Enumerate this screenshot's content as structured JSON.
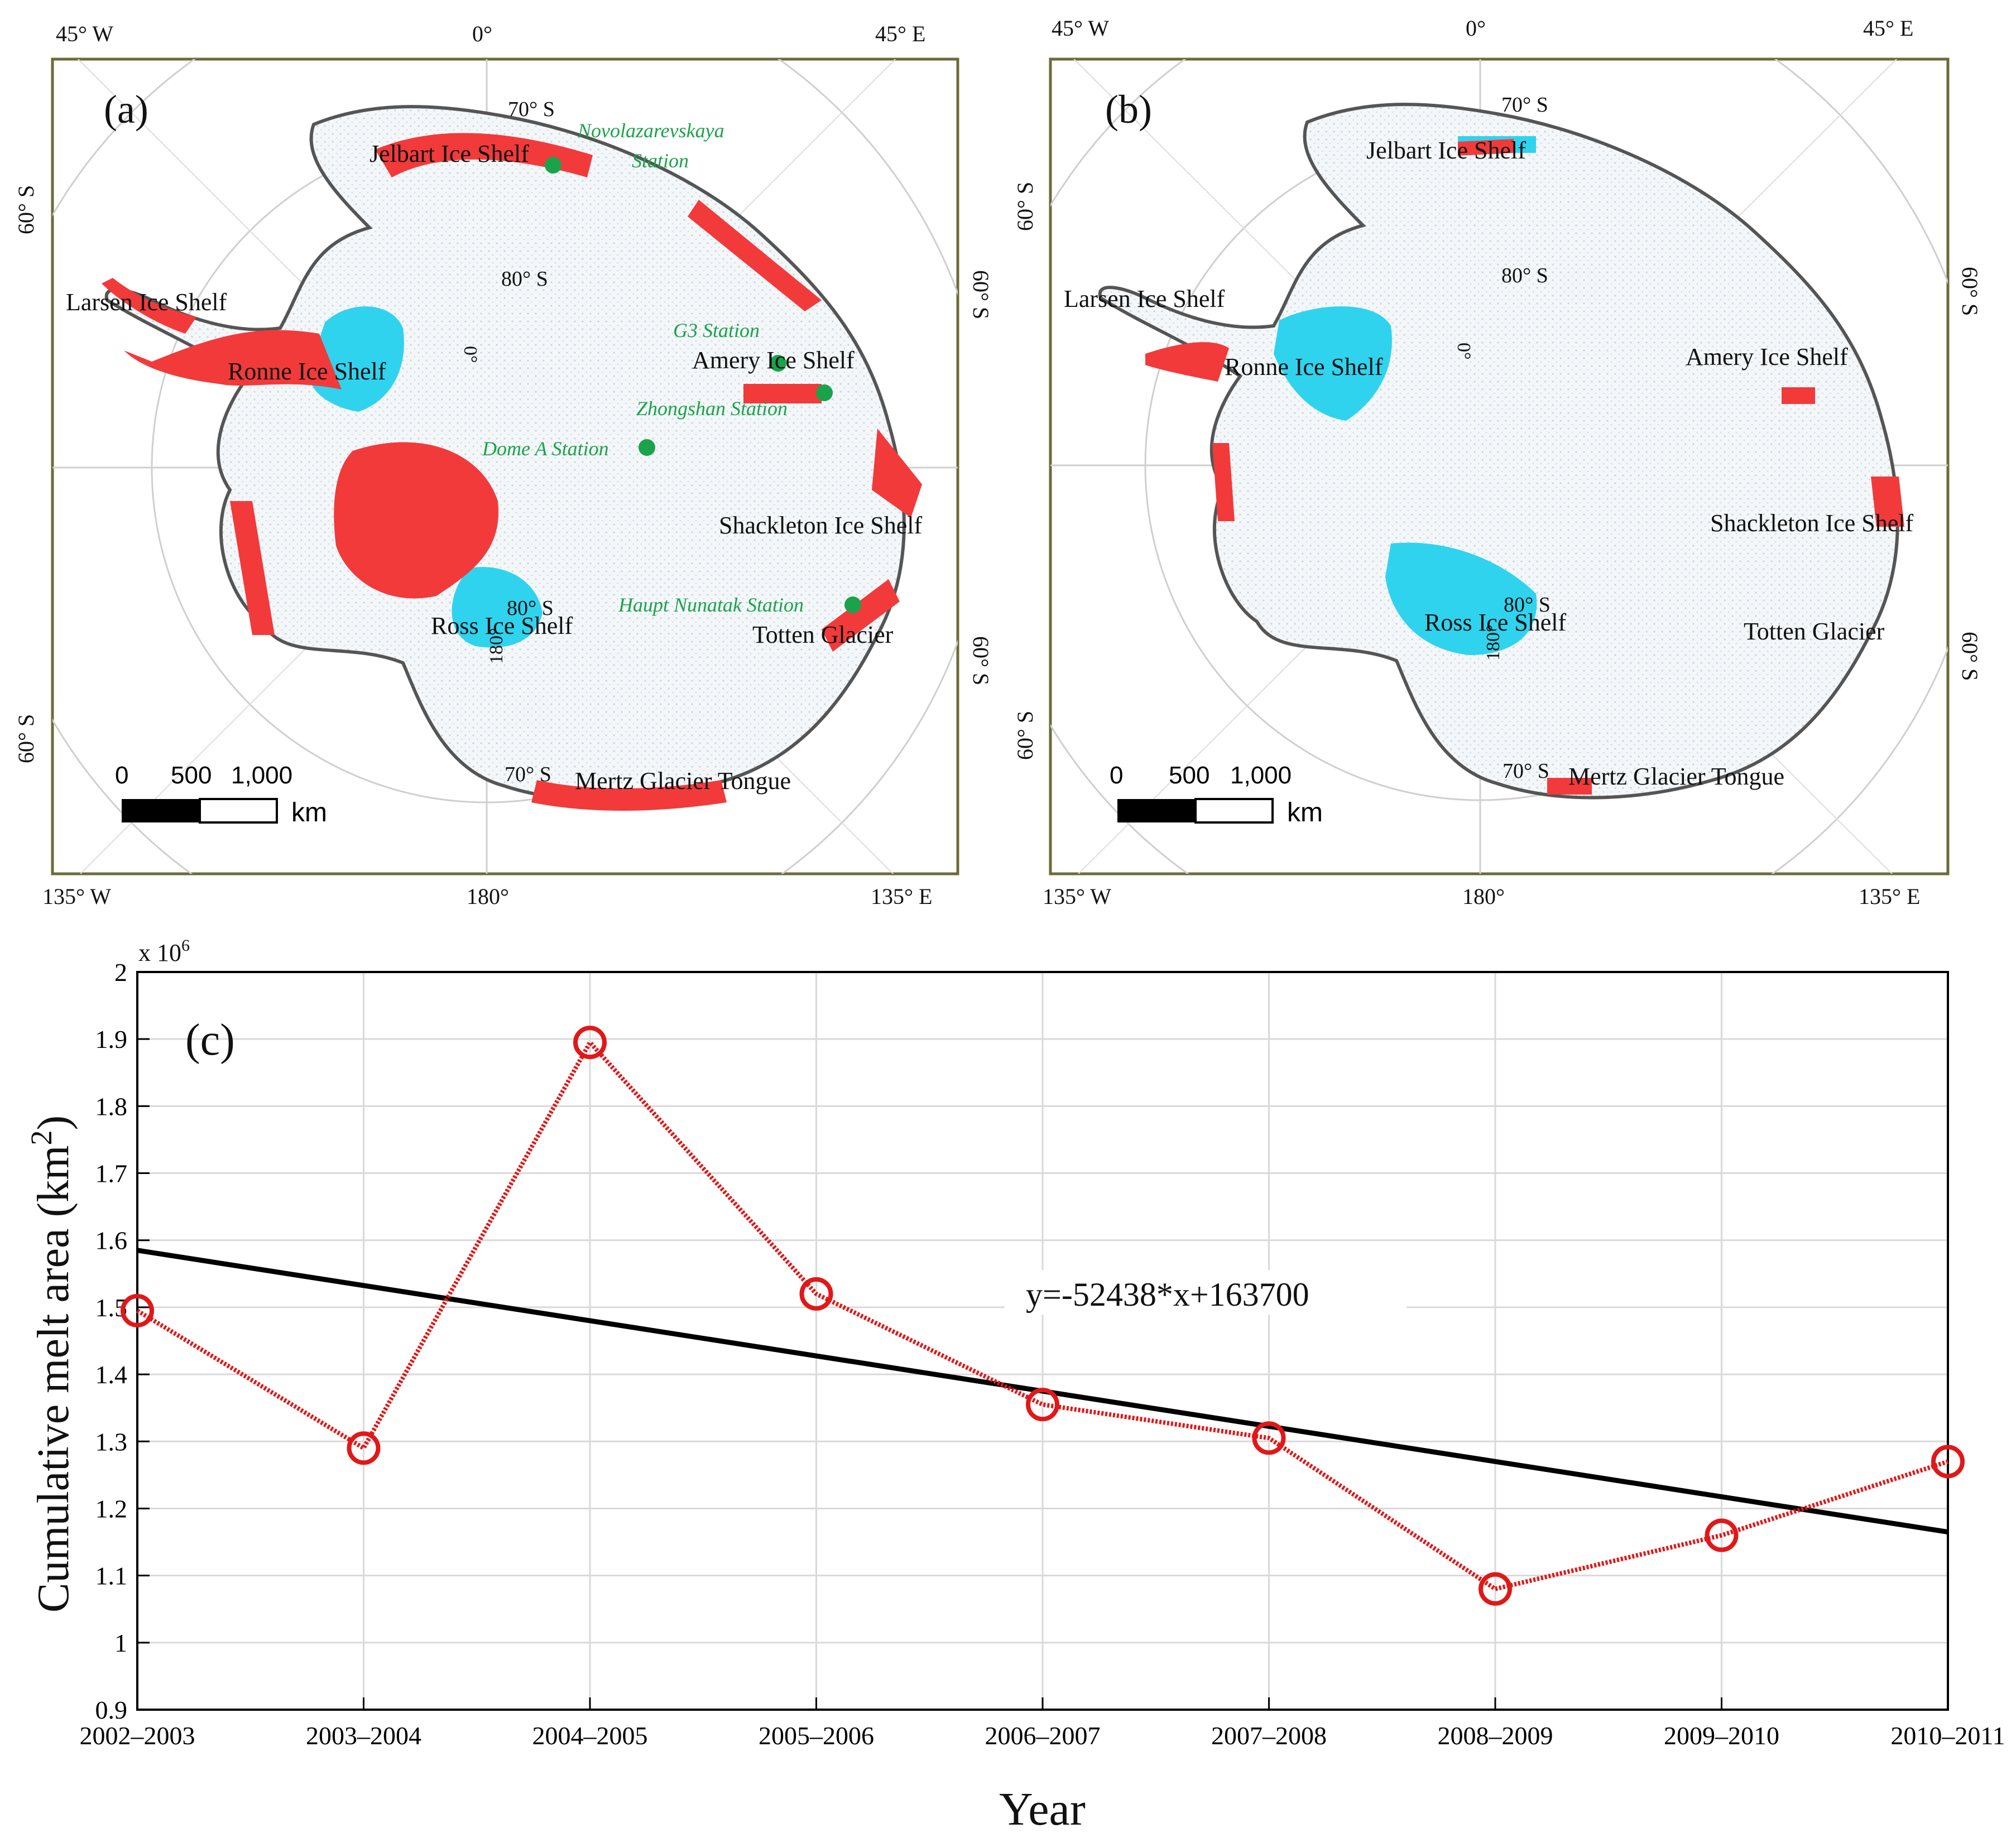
{
  "colors": {
    "melt_red": "#f23a3a",
    "ice_shelf_cyan": "#2fd3ee",
    "station_green": "#1aa34a",
    "trend_line": "#000000",
    "series_line": "#e01818",
    "grid": "#d9d9d9"
  },
  "map_a": {
    "panel_label": "(a)",
    "lon_top": [
      "45° W",
      "0°",
      "45° E"
    ],
    "lon_bottom": [
      "135° W",
      "180°",
      "135° E"
    ],
    "lat_left": [
      "60° S",
      "60° S"
    ],
    "lat_right": [
      "60° S",
      "60° S"
    ],
    "inner_lat": [
      "70° S",
      "80° S",
      "80° S",
      "70° S"
    ],
    "meridian_inner": [
      "0°",
      "180°"
    ],
    "labels": {
      "jelbart": "Jelbart Ice Shelf",
      "larsen": "Larsen Ice Shelf",
      "ronne": "Ronne Ice Shelf",
      "amery": "Amery Ice Shelf",
      "shackleton": "Shackleton Ice Shelf",
      "ross": "Ross Ice Shelf",
      "totten": "Totten Glacier",
      "mertz": "Mertz Glacier Tongue"
    },
    "stations": {
      "novolazarevskaya_1": "Novolazarevskaya",
      "novolazarevskaya_2": "Station",
      "g3": "G3 Station",
      "zhongshan": "Zhongshan Station",
      "dome_a": "Dome A Station",
      "haupt": "Haupt Nunatak Station"
    },
    "scale": {
      "ticks": [
        "0",
        "500",
        "1,000"
      ],
      "unit": "km"
    }
  },
  "map_b": {
    "panel_label": "(b)",
    "lon_top": [
      "45° W",
      "0°",
      "45° E"
    ],
    "lon_bottom": [
      "135° W",
      "180°",
      "135° E"
    ],
    "lat_left": [
      "60° S",
      "60° S"
    ],
    "lat_right": [
      "60° S",
      "60° S"
    ],
    "inner_lat": [
      "70° S",
      "80° S",
      "80° S",
      "70° S"
    ],
    "meridian_inner": [
      "0°",
      "180°"
    ],
    "labels": {
      "jelbart": "Jelbart Ice Shelf",
      "larsen": "Larsen Ice Shelf",
      "ronne": "Ronne Ice Shelf",
      "amery": "Amery Ice Shelf",
      "shackleton": "Shackleton Ice Shelf",
      "ross": "Ross Ice Shelf",
      "totten": "Totten Glacier",
      "mertz": "Mertz Glacier Tongue"
    },
    "scale": {
      "ticks": [
        "0",
        "500",
        "1,000"
      ],
      "unit": "km"
    }
  },
  "chart_data": {
    "type": "line",
    "panel_label": "(c)",
    "categories": [
      "2002–2003",
      "2003–2004",
      "2004–2005",
      "2005–2006",
      "2006–2007",
      "2007–2008",
      "2008–2009",
      "2009–2010",
      "2010–2011"
    ],
    "series": [
      {
        "name": "Cumulative melt area",
        "values": [
          1.495,
          1.29,
          1.895,
          1.52,
          1.355,
          1.305,
          1.08,
          1.16,
          1.27
        ]
      }
    ],
    "trend": {
      "label": "y=-52438*x+163700",
      "start": 1.585,
      "end": 1.165
    },
    "multiplier": "x 10",
    "multiplier_exp": "6",
    "ylabel": "Cumulative melt area (km",
    "ylabel_sup": "2",
    "ylabel_close": ")",
    "xlabel": "Year",
    "ylim": [
      0.9,
      2.0
    ],
    "yticks": [
      "0.9",
      "1",
      "1.1",
      "1.2",
      "1.3",
      "1.4",
      "1.5",
      "1.6",
      "1.7",
      "1.8",
      "1.9",
      "2"
    ],
    "grid": true
  }
}
